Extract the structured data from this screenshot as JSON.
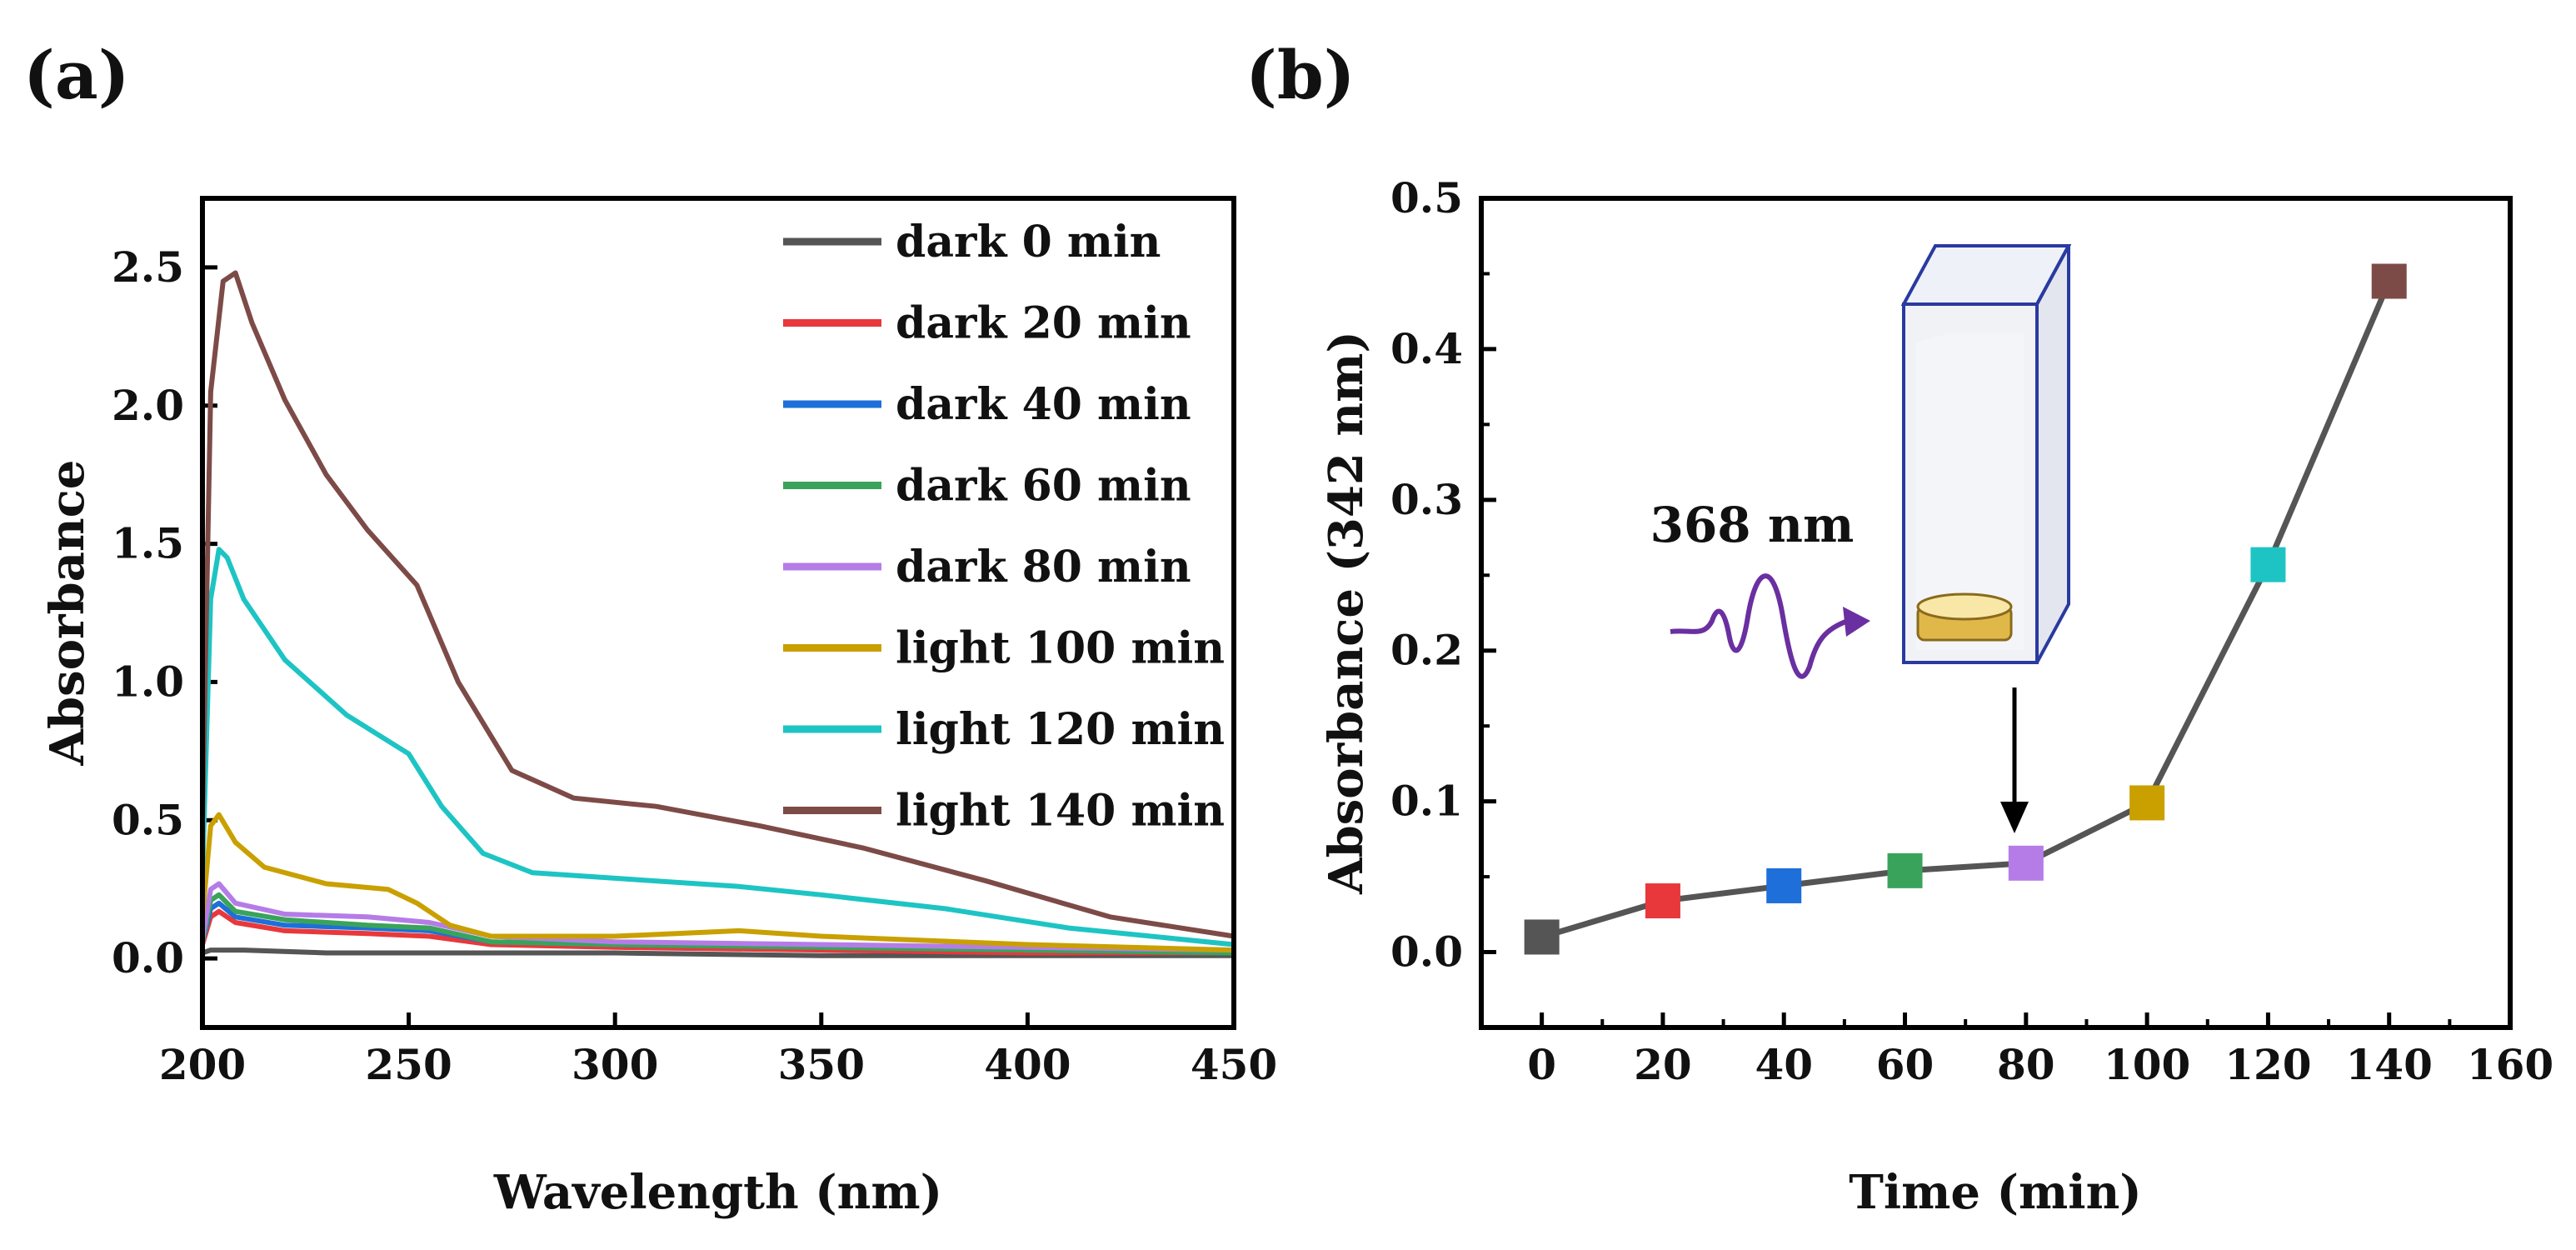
{
  "chart_data": [
    {
      "panel": "(a)",
      "type": "line",
      "title": "",
      "xlabel": "Wavelength (nm)",
      "ylabel": "Absorbance",
      "xlim": [
        200,
        450
      ],
      "ylim": [
        -0.25,
        2.75
      ],
      "xticks": [
        200,
        250,
        300,
        350,
        400,
        450
      ],
      "yticks": [
        0.0,
        0.5,
        1.0,
        1.5,
        2.0,
        2.5
      ],
      "legend_position": "top-right",
      "series": [
        {
          "name": "dark 0 min",
          "color": "#555555",
          "x": [
            200,
            202,
            205,
            210,
            230,
            250,
            300,
            350,
            400,
            450
          ],
          "y": [
            0.02,
            0.03,
            0.03,
            0.03,
            0.02,
            0.02,
            0.02,
            0.01,
            0.01,
            0.01
          ]
        },
        {
          "name": "dark 20 min",
          "color": "#e8383b",
          "x": [
            200,
            202,
            204,
            208,
            220,
            240,
            255,
            270,
            300,
            350,
            400,
            450
          ],
          "y": [
            0.05,
            0.15,
            0.17,
            0.13,
            0.1,
            0.09,
            0.08,
            0.05,
            0.04,
            0.03,
            0.02,
            0.02
          ]
        },
        {
          "name": "dark 40 min",
          "color": "#1e6fd9",
          "x": [
            200,
            202,
            204,
            208,
            220,
            240,
            255,
            270,
            300,
            350,
            400,
            450
          ],
          "y": [
            0.06,
            0.18,
            0.2,
            0.15,
            0.12,
            0.11,
            0.1,
            0.06,
            0.05,
            0.04,
            0.03,
            0.02
          ]
        },
        {
          "name": "dark 60 min",
          "color": "#3aa35b",
          "x": [
            200,
            202,
            204,
            208,
            220,
            240,
            255,
            270,
            300,
            350,
            400,
            450
          ],
          "y": [
            0.06,
            0.21,
            0.23,
            0.17,
            0.14,
            0.12,
            0.11,
            0.06,
            0.05,
            0.04,
            0.03,
            0.02
          ]
        },
        {
          "name": "dark 80 min",
          "color": "#b57ce8",
          "x": [
            200,
            202,
            204,
            208,
            220,
            240,
            255,
            270,
            300,
            350,
            400,
            450
          ],
          "y": [
            0.07,
            0.25,
            0.27,
            0.2,
            0.16,
            0.15,
            0.13,
            0.08,
            0.06,
            0.05,
            0.04,
            0.03
          ]
        },
        {
          "name": "light 100 min",
          "color": "#c9a000",
          "x": [
            200,
            202,
            204,
            208,
            215,
            230,
            245,
            252,
            260,
            270,
            300,
            330,
            350,
            400,
            450
          ],
          "y": [
            0.15,
            0.48,
            0.52,
            0.42,
            0.33,
            0.27,
            0.25,
            0.2,
            0.12,
            0.08,
            0.08,
            0.1,
            0.08,
            0.05,
            0.03
          ]
        },
        {
          "name": "light 120 min",
          "color": "#1ec4c4",
          "x": [
            200,
            202,
            204,
            206,
            210,
            220,
            235,
            250,
            258,
            268,
            280,
            300,
            330,
            350,
            380,
            410,
            450
          ],
          "y": [
            0.3,
            1.3,
            1.48,
            1.45,
            1.3,
            1.08,
            0.88,
            0.74,
            0.55,
            0.38,
            0.31,
            0.29,
            0.26,
            0.23,
            0.18,
            0.11,
            0.05
          ]
        },
        {
          "name": "light 140 min",
          "color": "#7d4b47",
          "x": [
            200,
            202,
            205,
            208,
            212,
            220,
            230,
            240,
            252,
            262,
            275,
            290,
            310,
            335,
            360,
            390,
            420,
            450
          ],
          "y": [
            0.5,
            2.05,
            2.45,
            2.48,
            2.3,
            2.02,
            1.75,
            1.55,
            1.35,
            1.0,
            0.68,
            0.58,
            0.55,
            0.48,
            0.4,
            0.28,
            0.15,
            0.08
          ]
        }
      ]
    },
    {
      "panel": "(b)",
      "type": "line",
      "title": "",
      "xlabel": "Time (min)",
      "ylabel": "Absorbance (342 nm)",
      "xlim": [
        -10,
        160
      ],
      "ylim": [
        -0.05,
        0.5
      ],
      "xticks": [
        0,
        20,
        40,
        60,
        80,
        100,
        120,
        140,
        160
      ],
      "yticks": [
        0.0,
        0.1,
        0.2,
        0.3,
        0.4,
        0.5
      ],
      "line_color": "#555555",
      "x": [
        0,
        20,
        40,
        60,
        80,
        100,
        120,
        140
      ],
      "y": [
        0.01,
        0.034,
        0.044,
        0.054,
        0.059,
        0.099,
        0.257,
        0.445
      ],
      "marker_colors": [
        "#555555",
        "#e8383b",
        "#1e6fd9",
        "#3aa35b",
        "#b57ce8",
        "#c9a000",
        "#1ec4c4",
        "#7d4b47"
      ],
      "annotation": "368 nm"
    }
  ]
}
